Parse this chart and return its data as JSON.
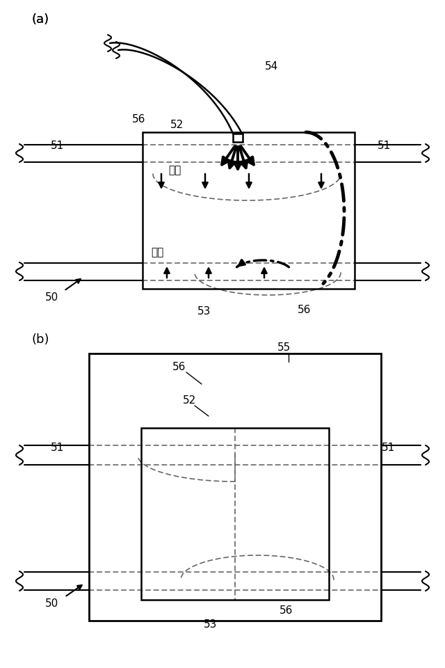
{
  "bg_color": "#ffffff",
  "line_color": "#000000",
  "gray_color": "#666666",
  "label_a": "(a)",
  "label_b": "(b)",
  "fig_w": 6.4,
  "fig_h": 9.6,
  "dpi": 100
}
